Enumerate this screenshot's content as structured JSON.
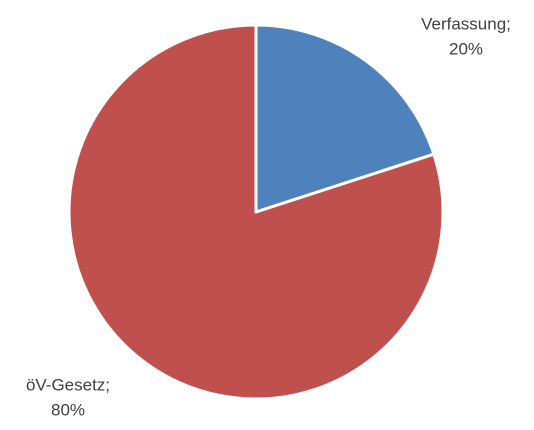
{
  "chart_data": {
    "type": "pie",
    "categories": [
      "Verfassung;",
      "öV-Gesetz;"
    ],
    "values": [
      20,
      80
    ],
    "value_labels": [
      "20%",
      "80%"
    ],
    "colors": [
      "#4f81bd",
      "#c0504d"
    ],
    "start_angle": 90,
    "direction": "clockwise"
  }
}
